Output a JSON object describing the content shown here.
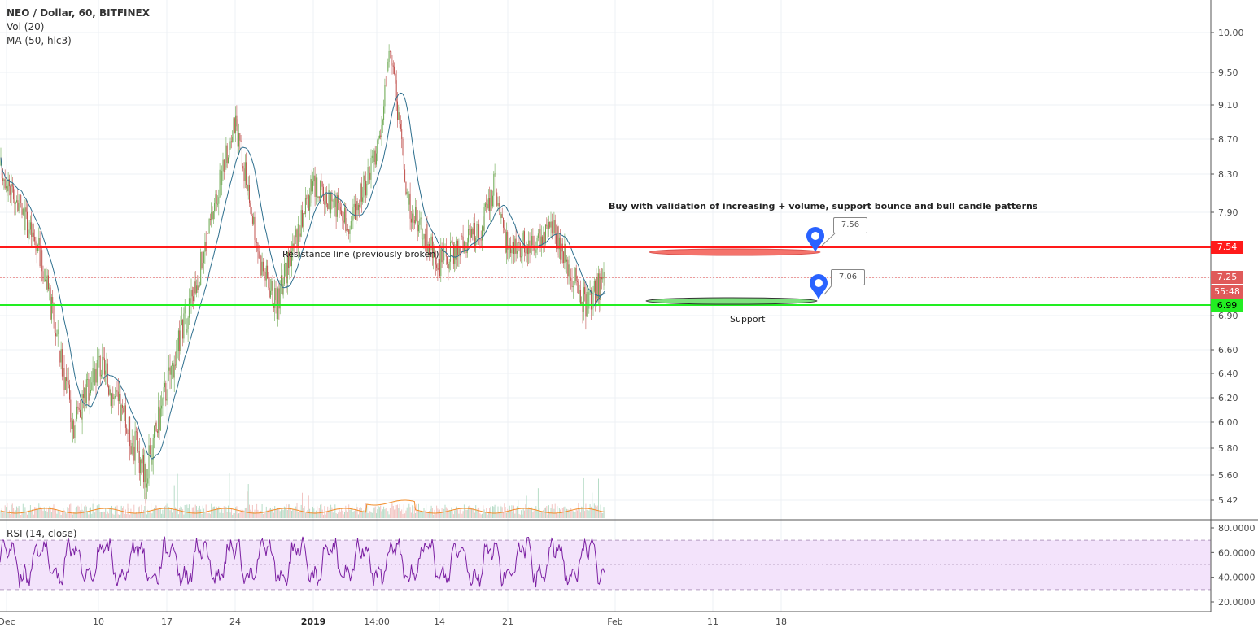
{
  "header": {
    "symbol": "NEO / Dollar, 60, BITFINEX",
    "indicator_vol": "Vol (20)",
    "indicator_ma": "MA (50, hlc3)",
    "indicator_rsi": "RSI (14, close)"
  },
  "price_tags": {
    "resistance": "7.54",
    "current": "7.25",
    "countdown": "55:48",
    "support": "6.99"
  },
  "annotations": {
    "resistance_label": "Resistance line (previously broken)",
    "support_label": "Support",
    "trade_note": "Buy with validation of increasing + volume, support bounce and bull candle patterns",
    "callout_upper": "7.56",
    "callout_lower": "7.06"
  },
  "colors": {
    "resistance": "#ff1a1a",
    "support": "#22ee22",
    "candle_up": "#6aa84f",
    "candle_down": "#c0504d",
    "ma_line": "#2e6f8e",
    "vol_ma": "#f28c28",
    "rsi_line": "#7b1fa2",
    "rsi_band": "#f3e3fb",
    "marker": "#2962ff",
    "current_tag": "#e05a5a",
    "current_line": "#d93838"
  },
  "chart_data": [
    {
      "type": "candlestick",
      "title": "NEO / Dollar, 60, BITFINEX",
      "y_ticks": [
        10.0,
        9.5,
        9.1,
        8.7,
        8.3,
        7.9,
        7.54,
        7.25,
        6.9,
        6.6,
        6.4,
        6.2,
        6.0,
        5.8,
        5.6,
        5.42
      ],
      "y_tick_labels": [
        "10.00",
        "9.50",
        "9.10",
        "8.70",
        "8.30",
        "7.90",
        "7.54",
        "7.25",
        "6.90",
        "6.60",
        "6.40",
        "6.20",
        "6.00",
        "5.80",
        "5.60",
        "5.42"
      ],
      "x_ticks": [
        "Dec",
        "10",
        "17",
        "24",
        "2019",
        "14:00",
        "14",
        "21",
        "Feb",
        "11",
        "18"
      ],
      "horizontal_lines": [
        {
          "name": "Resistance line (previously broken)",
          "value": 7.54
        },
        {
          "name": "Support",
          "value": 6.99
        }
      ],
      "last_price": 7.25,
      "series_outline": [
        {
          "x": "Dec",
          "y": 8.4
        },
        {
          "x": "Dec 5",
          "y": 7.5
        },
        {
          "x": "Dec 8",
          "y": 6.0
        },
        {
          "x": "10",
          "y": 6.5
        },
        {
          "x": "Dec 14",
          "y": 5.6
        },
        {
          "x": "17",
          "y": 6.3
        },
        {
          "x": "Dec 20",
          "y": 7.3
        },
        {
          "x": "24",
          "y": 8.9
        },
        {
          "x": "Dec 27",
          "y": 7.4
        },
        {
          "x": "Dec 29",
          "y": 7.0
        },
        {
          "x": "2019",
          "y": 8.2
        },
        {
          "x": "Jan 5",
          "y": 7.8
        },
        {
          "x": "14:00",
          "y": 8.5
        },
        {
          "x": "Jan 9",
          "y": 9.8
        },
        {
          "x": "Jan 11",
          "y": 8.0
        },
        {
          "x": "14",
          "y": 7.4
        },
        {
          "x": "Jan 18",
          "y": 7.7
        },
        {
          "x": "Jan 20",
          "y": 8.2
        },
        {
          "x": "21",
          "y": 7.5
        },
        {
          "x": "Jan 25",
          "y": 7.7
        },
        {
          "x": "Jan 27",
          "y": 7.0
        },
        {
          "x": "Jan 29",
          "y": 7.25
        }
      ]
    },
    {
      "type": "line",
      "title": "RSI (14, close)",
      "y_ticks": [
        80,
        60,
        40,
        20
      ],
      "y_tick_labels": [
        "80.0000",
        "60.0000",
        "40.0000",
        "20.0000"
      ],
      "bands": [
        30,
        70
      ]
    }
  ]
}
